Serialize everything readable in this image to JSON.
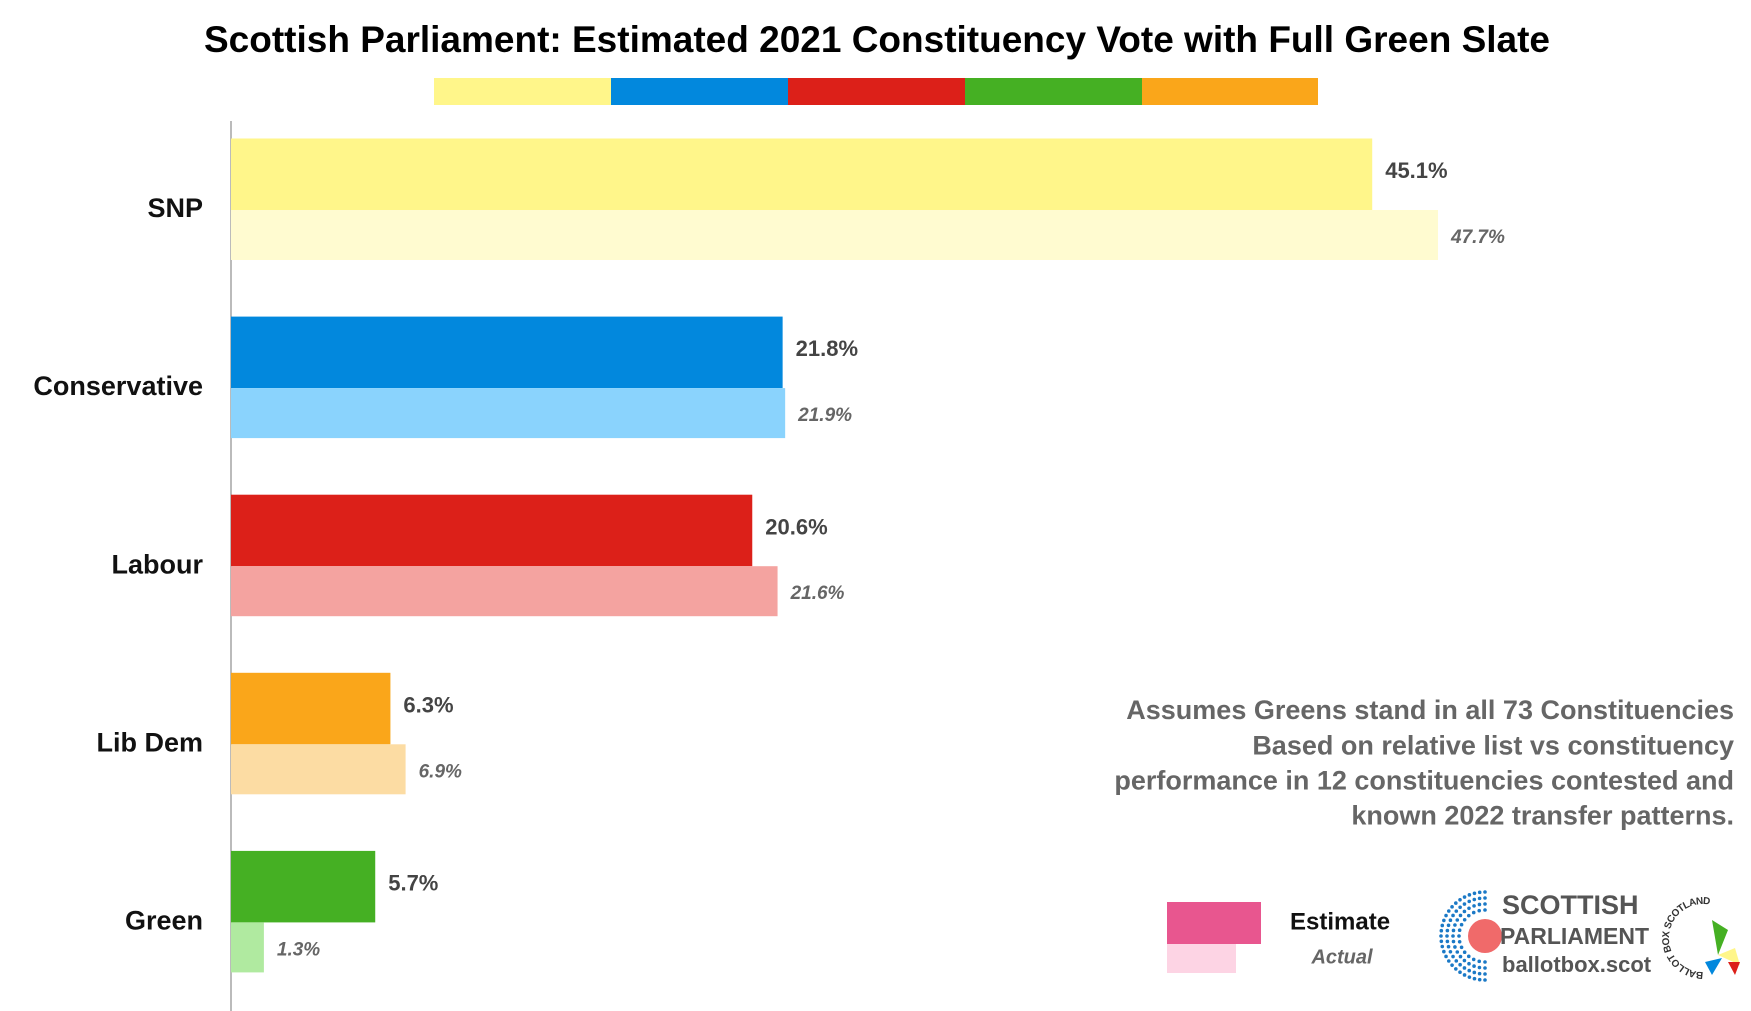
{
  "chart_data": {
    "type": "bar",
    "orientation": "horizontal",
    "title": "Scottish Parliament: Estimated 2021 Constituency Vote with Full Green Slate",
    "categories": [
      "SNP",
      "Conservative",
      "Labour",
      "Lib Dem",
      "Green"
    ],
    "series": [
      {
        "name": "Estimate",
        "legend_color": "#e8568f",
        "color": [
          "#fff68a",
          "#0288dd",
          "#dc2019",
          "#faa61a",
          "#45b023"
        ],
        "values": [
          45.1,
          21.8,
          20.6,
          6.3,
          5.7
        ],
        "value_labels": [
          "45.1%",
          "21.8%",
          "20.6%",
          "6.3%",
          "5.7%"
        ]
      },
      {
        "name": "Actual",
        "legend_color": "#fdd4e4",
        "color": [
          "#fffbd0",
          "#8ad3fd",
          "#f4a3a0",
          "#fcdca3",
          "#b0eaa0"
        ],
        "values": [
          47.7,
          21.9,
          21.6,
          6.9,
          1.3
        ],
        "value_labels": [
          "47.7%",
          "21.9%",
          "21.6%",
          "6.9%",
          "1.3%"
        ]
      }
    ],
    "annotation": [
      "Assumes Greens stand in all 73 Constituencies",
      "Based on relative list vs constituency",
      "performance in 12 constituencies contested and",
      "known 2022 transfer patterns."
    ]
  },
  "logo": {
    "line1": "SCOTTISH",
    "line2": "PARLIAMENT",
    "site": "ballotbox.scot",
    "badge": "BALLOT BOX SCOTLAND"
  }
}
